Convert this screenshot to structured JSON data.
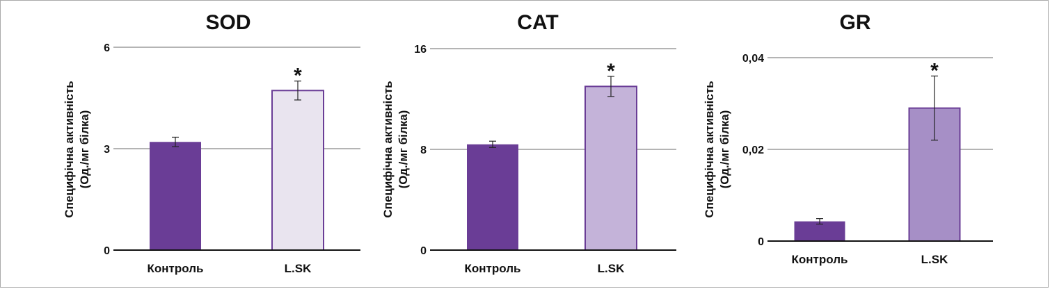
{
  "chart_data": [
    {
      "type": "bar",
      "title": "SOD",
      "ylabel": [
        "Специфічна активність",
        "(Од./мг білка)"
      ],
      "categories": [
        "Контроль",
        "L.SK"
      ],
      "values": [
        3.2,
        4.72
      ],
      "errors": [
        0.14,
        0.28
      ],
      "significance": [
        "",
        "*"
      ],
      "ylim": [
        0,
        6
      ],
      "yticks": [
        0,
        3,
        6
      ],
      "ytick_labels": [
        "0",
        "3",
        "6"
      ],
      "bar_colors": [
        "#6a3d96",
        "#e9e4ef"
      ],
      "grid": true
    },
    {
      "type": "bar",
      "title": "CAT",
      "ylabel": [
        "Специфічна активність",
        "(Од./мг білка)"
      ],
      "categories": [
        "Контроль",
        "L.SK"
      ],
      "values": [
        8.4,
        13.0
      ],
      "errors": [
        0.25,
        0.8
      ],
      "significance": [
        "",
        "*"
      ],
      "ylim": [
        0,
        16
      ],
      "yticks": [
        0,
        8,
        16
      ],
      "ytick_labels": [
        "0",
        "8",
        "16"
      ],
      "bar_colors": [
        "#6a3d96",
        "#c4b3d9"
      ],
      "grid": true
    },
    {
      "type": "bar",
      "title": "GR",
      "ylabel": [
        "Специфічна активність",
        "(Од./мг білка)"
      ],
      "categories": [
        "Контроль",
        "L.SK"
      ],
      "values": [
        0.0043,
        0.029
      ],
      "errors": [
        0.0006,
        0.007
      ],
      "significance": [
        "",
        "*"
      ],
      "ylim": [
        0,
        0.04
      ],
      "yticks": [
        0,
        0.02,
        0.04
      ],
      "ytick_labels": [
        "0",
        "0,02",
        "0,04"
      ],
      "bar_colors": [
        "#6a3d96",
        "#a68fc6"
      ],
      "grid": true
    }
  ]
}
